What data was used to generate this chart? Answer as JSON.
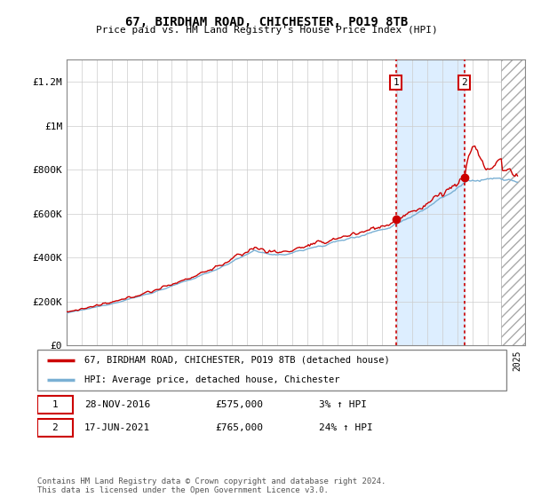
{
  "title": "67, BIRDHAM ROAD, CHICHESTER, PO19 8TB",
  "subtitle": "Price paid vs. HM Land Registry's House Price Index (HPI)",
  "legend_label_red": "67, BIRDHAM ROAD, CHICHESTER, PO19 8TB (detached house)",
  "legend_label_blue": "HPI: Average price, detached house, Chichester",
  "transaction1_date": "28-NOV-2016",
  "transaction1_price": "£575,000",
  "transaction1_hpi": "3% ↑ HPI",
  "transaction2_date": "17-JUN-2021",
  "transaction2_price": "£765,000",
  "transaction2_hpi": "24% ↑ HPI",
  "footer": "Contains HM Land Registry data © Crown copyright and database right 2024.\nThis data is licensed under the Open Government Licence v3.0.",
  "ylim": [
    0,
    1300000
  ],
  "yticks": [
    0,
    200000,
    400000,
    600000,
    800000,
    1000000,
    1200000
  ],
  "ytick_labels": [
    "£0",
    "£200K",
    "£400K",
    "£600K",
    "£800K",
    "£1M",
    "£1.2M"
  ],
  "transaction1_x": 2016.91,
  "transaction1_y": 575000,
  "transaction2_x": 2021.46,
  "transaction2_y": 765000,
  "xmin": 1995,
  "xmax": 2025.5,
  "hatch_start": 2023.9,
  "red_color": "#cc0000",
  "blue_color": "#7ab0d4",
  "vline_color": "#cc0000",
  "span_color": "#ddeeff",
  "grid_color": "#cccccc"
}
